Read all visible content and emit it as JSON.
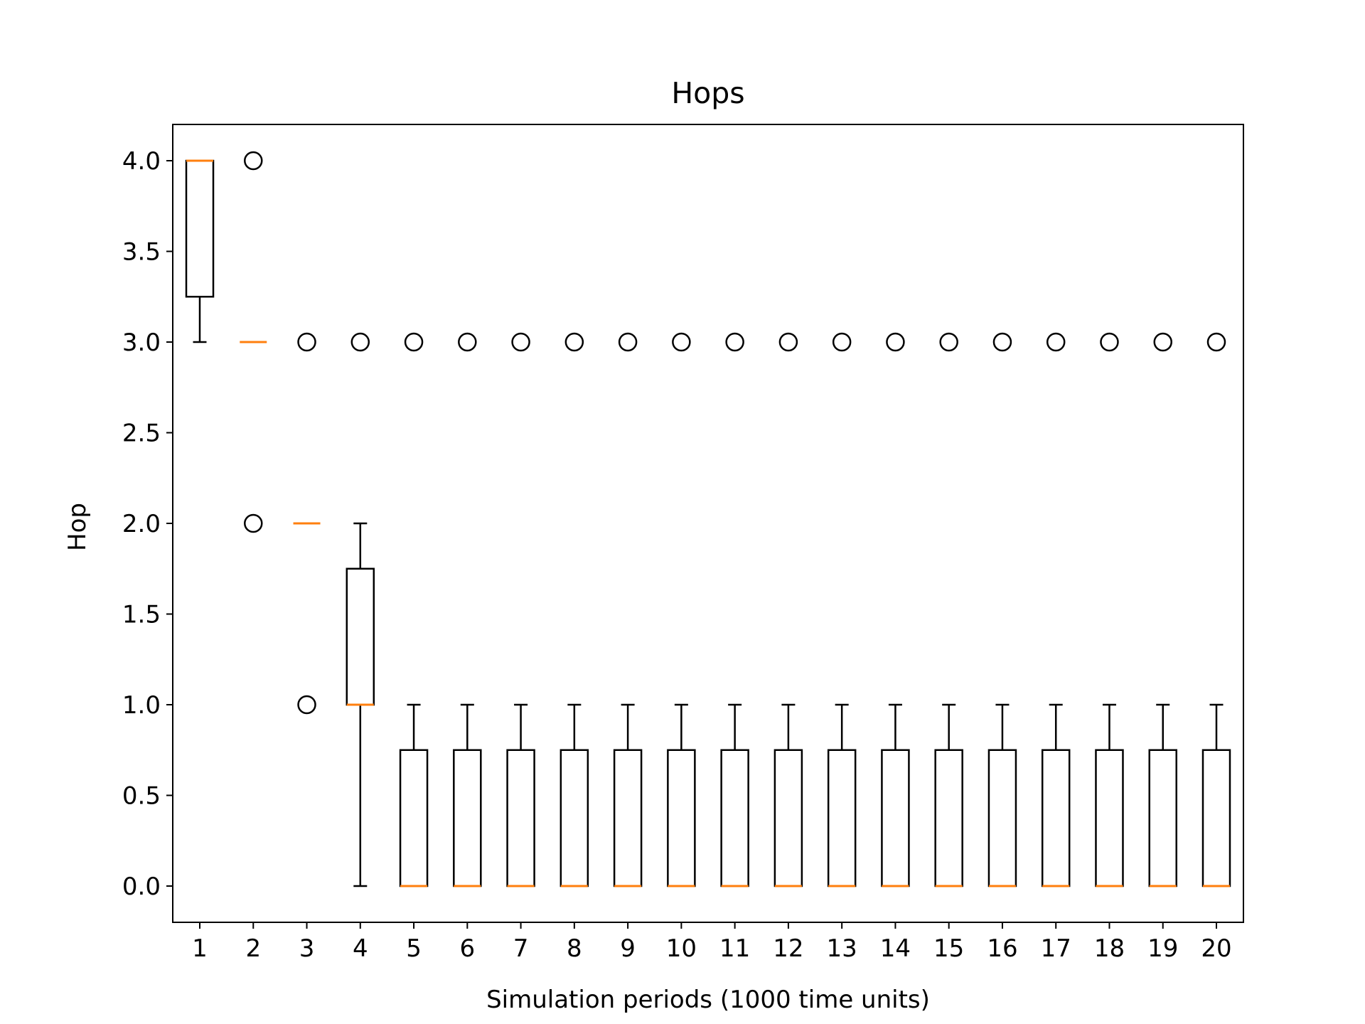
{
  "chart_data": {
    "type": "box",
    "title": "Hops",
    "xlabel": "Simulation periods (1000 time units)",
    "ylabel": "Hop",
    "ylim": [
      -0.2,
      4.2
    ],
    "yticks": [
      "0.0",
      "0.5",
      "1.0",
      "1.5",
      "2.0",
      "2.5",
      "3.0",
      "3.5",
      "4.0"
    ],
    "categories": [
      "1",
      "2",
      "3",
      "4",
      "5",
      "6",
      "7",
      "8",
      "9",
      "10",
      "11",
      "12",
      "13",
      "14",
      "15",
      "16",
      "17",
      "18",
      "19",
      "20"
    ],
    "colors": {
      "box": "#000000",
      "median": "#ff7f0e",
      "flier": "#000000"
    },
    "grid": false,
    "boxes": [
      {
        "category": "1",
        "whislo": 3.0,
        "q1": 3.25,
        "med": 4.0,
        "q3": 4.0,
        "whishi": 4.0,
        "fliers": []
      },
      {
        "category": "2",
        "whislo": 3.0,
        "q1": 3.0,
        "med": 3.0,
        "q3": 3.0,
        "whishi": 3.0,
        "fliers": [
          2.0,
          4.0
        ]
      },
      {
        "category": "3",
        "whislo": 2.0,
        "q1": 2.0,
        "med": 2.0,
        "q3": 2.0,
        "whishi": 2.0,
        "fliers": [
          1.0,
          3.0
        ]
      },
      {
        "category": "4",
        "whislo": 0.0,
        "q1": 1.0,
        "med": 1.0,
        "q3": 1.75,
        "whishi": 2.0,
        "fliers": [
          3.0
        ]
      },
      {
        "category": "5",
        "whislo": 0.0,
        "q1": 0.0,
        "med": 0.0,
        "q3": 0.75,
        "whishi": 1.0,
        "fliers": [
          3.0
        ]
      },
      {
        "category": "6",
        "whislo": 0.0,
        "q1": 0.0,
        "med": 0.0,
        "q3": 0.75,
        "whishi": 1.0,
        "fliers": [
          3.0
        ]
      },
      {
        "category": "7",
        "whislo": 0.0,
        "q1": 0.0,
        "med": 0.0,
        "q3": 0.75,
        "whishi": 1.0,
        "fliers": [
          3.0
        ]
      },
      {
        "category": "8",
        "whislo": 0.0,
        "q1": 0.0,
        "med": 0.0,
        "q3": 0.75,
        "whishi": 1.0,
        "fliers": [
          3.0
        ]
      },
      {
        "category": "9",
        "whislo": 0.0,
        "q1": 0.0,
        "med": 0.0,
        "q3": 0.75,
        "whishi": 1.0,
        "fliers": [
          3.0
        ]
      },
      {
        "category": "10",
        "whislo": 0.0,
        "q1": 0.0,
        "med": 0.0,
        "q3": 0.75,
        "whishi": 1.0,
        "fliers": [
          3.0
        ]
      },
      {
        "category": "11",
        "whislo": 0.0,
        "q1": 0.0,
        "med": 0.0,
        "q3": 0.75,
        "whishi": 1.0,
        "fliers": [
          3.0
        ]
      },
      {
        "category": "12",
        "whislo": 0.0,
        "q1": 0.0,
        "med": 0.0,
        "q3": 0.75,
        "whishi": 1.0,
        "fliers": [
          3.0
        ]
      },
      {
        "category": "13",
        "whislo": 0.0,
        "q1": 0.0,
        "med": 0.0,
        "q3": 0.75,
        "whishi": 1.0,
        "fliers": [
          3.0
        ]
      },
      {
        "category": "14",
        "whislo": 0.0,
        "q1": 0.0,
        "med": 0.0,
        "q3": 0.75,
        "whishi": 1.0,
        "fliers": [
          3.0
        ]
      },
      {
        "category": "15",
        "whislo": 0.0,
        "q1": 0.0,
        "med": 0.0,
        "q3": 0.75,
        "whishi": 1.0,
        "fliers": [
          3.0
        ]
      },
      {
        "category": "16",
        "whislo": 0.0,
        "q1": 0.0,
        "med": 0.0,
        "q3": 0.75,
        "whishi": 1.0,
        "fliers": [
          3.0
        ]
      },
      {
        "category": "17",
        "whislo": 0.0,
        "q1": 0.0,
        "med": 0.0,
        "q3": 0.75,
        "whishi": 1.0,
        "fliers": [
          3.0
        ]
      },
      {
        "category": "18",
        "whislo": 0.0,
        "q1": 0.0,
        "med": 0.0,
        "q3": 0.75,
        "whishi": 1.0,
        "fliers": [
          3.0
        ]
      },
      {
        "category": "19",
        "whislo": 0.0,
        "q1": 0.0,
        "med": 0.0,
        "q3": 0.75,
        "whishi": 1.0,
        "fliers": [
          3.0
        ]
      },
      {
        "category": "20",
        "whislo": 0.0,
        "q1": 0.0,
        "med": 0.0,
        "q3": 0.75,
        "whishi": 1.0,
        "fliers": [
          3.0
        ]
      }
    ]
  }
}
